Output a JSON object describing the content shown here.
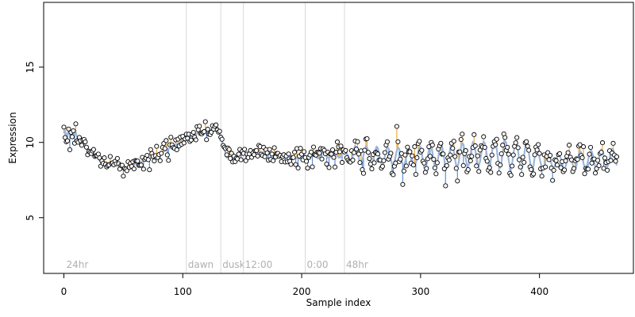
{
  "chart_data": {
    "type": "scatter",
    "title": "",
    "xlabel": "Sample index",
    "ylabel": "Expression",
    "xlim": [
      -17,
      479
    ],
    "ylim": [
      1.3,
      19.3
    ],
    "x_ticks": [
      0,
      100,
      200,
      300,
      400
    ],
    "y_ticks": [
      5,
      10,
      15
    ],
    "grid": false,
    "legend": "none",
    "colors": {
      "above_fit": "#f4a73c",
      "below_fit": "#5f8fd6",
      "fit_line": "#9db6dc",
      "annotation_line": "#d9d9d9",
      "annotation_text": "#b0b0b0",
      "point_stroke": "#000000",
      "point_fill": "#ffffff"
    },
    "annotations": [
      {
        "x": 103,
        "label": "dawn"
      },
      {
        "x": 132,
        "label": "dusk"
      },
      {
        "x": 151,
        "label": "12:00"
      },
      {
        "x": 203,
        "label": "0:00"
      },
      {
        "x": 236,
        "label": "48hr"
      }
    ],
    "corner_label": "24hr",
    "segments": [
      {
        "x_start": 0,
        "x_end": 12,
        "y_start": 10.6,
        "y_end": 10.5,
        "noise": 0.45,
        "osc_amp": 0.2,
        "osc_period": 3
      },
      {
        "x_start": 12,
        "x_end": 30,
        "y_start": 10.2,
        "y_end": 8.9,
        "noise": 0.25,
        "osc_amp": 0.0,
        "osc_period": 8
      },
      {
        "x_start": 30,
        "x_end": 55,
        "y_start": 8.8,
        "y_end": 8.3,
        "noise": 0.3,
        "osc_amp": 0.0,
        "osc_period": 8
      },
      {
        "x_start": 55,
        "x_end": 75,
        "y_start": 8.4,
        "y_end": 9.0,
        "noise": 0.3,
        "osc_amp": 0.0,
        "osc_period": 8
      },
      {
        "x_start": 75,
        "x_end": 100,
        "y_start": 9.0,
        "y_end": 10.1,
        "noise": 0.35,
        "osc_amp": 0.0,
        "osc_period": 8
      },
      {
        "x_start": 100,
        "x_end": 130,
        "y_start": 10.3,
        "y_end": 11.0,
        "noise": 0.25,
        "osc_amp": 0.0,
        "osc_period": 8
      },
      {
        "x_start": 130,
        "x_end": 137,
        "y_start": 10.9,
        "y_end": 9.0,
        "noise": 0.3,
        "osc_amp": 0.0,
        "osc_period": 8
      },
      {
        "x_start": 137,
        "x_end": 160,
        "y_start": 9.0,
        "y_end": 9.3,
        "noise": 0.3,
        "osc_amp": 0.0,
        "osc_period": 8
      },
      {
        "x_start": 160,
        "x_end": 200,
        "y_start": 9.4,
        "y_end": 8.9,
        "noise": 0.35,
        "osc_amp": 0.0,
        "osc_period": 8
      },
      {
        "x_start": 200,
        "x_end": 240,
        "y_start": 9.1,
        "y_end": 9.2,
        "noise": 0.45,
        "osc_amp": 0.2,
        "osc_period": 9
      },
      {
        "x_start": 240,
        "x_end": 300,
        "y_start": 9.2,
        "y_end": 9.0,
        "noise": 0.5,
        "osc_amp": 0.6,
        "osc_period": 9
      },
      {
        "x_start": 300,
        "x_end": 360,
        "y_start": 9.0,
        "y_end": 9.3,
        "noise": 0.5,
        "osc_amp": 0.8,
        "osc_period": 9
      },
      {
        "x_start": 360,
        "x_end": 400,
        "y_start": 9.3,
        "y_end": 9.0,
        "noise": 0.45,
        "osc_amp": 0.9,
        "osc_period": 9
      },
      {
        "x_start": 400,
        "x_end": 430,
        "y_start": 8.8,
        "y_end": 8.7,
        "noise": 0.4,
        "osc_amp": 0.5,
        "osc_period": 9
      },
      {
        "x_start": 430,
        "x_end": 465,
        "y_start": 8.8,
        "y_end": 9.0,
        "noise": 0.4,
        "osc_amp": 0.6,
        "osc_period": 9
      }
    ]
  }
}
